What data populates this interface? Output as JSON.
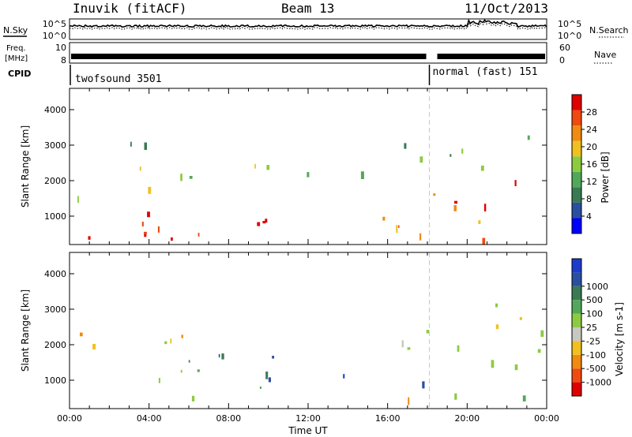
{
  "header": {
    "station": "Inuvik (fitACF)",
    "beam": "Beam 13",
    "date": "11/Oct/2013"
  },
  "colors": {
    "power_scale": [
      "#0000ff",
      "#2a4fa0",
      "#3a7a52",
      "#52a85a",
      "#8ccb3f",
      "#f0c020",
      "#f08a10",
      "#f04a10",
      "#e00000"
    ],
    "velocity_scale": [
      "#e00000",
      "#f04a10",
      "#f08a10",
      "#f0c020",
      "#c8c8c0",
      "#8ccb3f",
      "#52a85a",
      "#3a7a52",
      "#2a4fa0",
      "#1e3ccc"
    ],
    "axis": "#000000"
  },
  "side_labels": {
    "nsky": "N.Sky",
    "nsearch": "N.Search",
    "freq_line1": "Freq.",
    "freq_line2": "[MHz]",
    "nave": "Nave",
    "cpid": "CPID"
  },
  "cpid_segments": [
    {
      "label": "twofsound 3501",
      "start_hour": 0,
      "end_hour": 18.1
    },
    {
      "label": "normal (fast) 151",
      "start_hour": 18.1,
      "end_hour": 24
    }
  ],
  "chart_data": [
    {
      "type": "line",
      "panel": "noise",
      "left_axis": {
        "label": "N.Sky",
        "ticks": [
          "10^5",
          "10^0"
        ]
      },
      "right_axis": {
        "label": "N.Search",
        "ticks": [
          "10^5",
          "10^0"
        ]
      }
    },
    {
      "type": "line",
      "panel": "frequency",
      "left_axis": {
        "label": "Freq. [MHz]",
        "ticks": [
          "10",
          "8"
        ]
      },
      "right_axis": {
        "label": "Nave",
        "ticks": [
          "60",
          "0"
        ]
      }
    },
    {
      "type": "heatmap",
      "panel": "power",
      "xlabel": "",
      "ylabel": "Slant Range [km]",
      "xlim": [
        0,
        24
      ],
      "ylim": [
        200,
        4600
      ],
      "y_ticks": [
        "1000",
        "2000",
        "3000",
        "4000"
      ],
      "colorbar": {
        "label": "Power [dB]",
        "ticks": [
          "4",
          "8",
          "12",
          "16",
          "20",
          "24",
          "28"
        ],
        "range": [
          0,
          32
        ]
      },
      "regions": [
        {
          "x0": 0,
          "x1": 12,
          "y0": 400,
          "y1": 1400,
          "level": 8
        },
        {
          "x0": 3,
          "x1": 8.5,
          "y0": 300,
          "y1": 1000,
          "level": 8
        },
        {
          "x0": 0,
          "x1": 12,
          "y0": 1500,
          "y1": 2500,
          "level": 4
        },
        {
          "x0": 2,
          "x1": 6.5,
          "y0": 2600,
          "y1": 3100,
          "level": 3
        },
        {
          "x0": 13.5,
          "x1": 18,
          "y0": 700,
          "y1": 1700,
          "level": 6
        },
        {
          "x0": 14.5,
          "x1": 18,
          "y0": 1900,
          "y1": 3100,
          "level": 3
        },
        {
          "x0": 16,
          "x1": 18,
          "y0": 250,
          "y1": 700,
          "level": 6
        },
        {
          "x0": 18.2,
          "x1": 24,
          "y0": 1000,
          "y1": 2200,
          "level": 7
        },
        {
          "x0": 18.2,
          "x1": 24,
          "y0": 2300,
          "y1": 3400,
          "level": 3
        },
        {
          "x0": 18.2,
          "x1": 24,
          "y0": 300,
          "y1": 900,
          "level": 6
        }
      ]
    },
    {
      "type": "heatmap",
      "panel": "velocity",
      "xlabel": "Time UT",
      "ylabel": "Slant Range [km]",
      "xlim": [
        0,
        24
      ],
      "ylim": [
        200,
        4600
      ],
      "x_ticks": [
        "00:00",
        "04:00",
        "08:00",
        "12:00",
        "16:00",
        "20:00",
        "00:00"
      ],
      "y_ticks": [
        "1000",
        "2000",
        "3000",
        "4000"
      ],
      "colorbar": {
        "label": "Velocity [m s-1]",
        "ticks": [
          "-1000",
          "-500",
          "-100",
          "-25",
          "25",
          "100",
          "500",
          "1000"
        ]
      },
      "regions": [
        {
          "x0": 0,
          "x1": 8,
          "y0": 900,
          "y1": 1800,
          "level": 6
        },
        {
          "x0": 4.5,
          "x1": 8.5,
          "y0": 400,
          "y1": 900,
          "level": 4
        },
        {
          "x0": 7,
          "x1": 11,
          "y0": 700,
          "y1": 1800,
          "level": 7
        },
        {
          "x0": 9,
          "x1": 11.5,
          "y0": 800,
          "y1": 1700,
          "level": 8
        },
        {
          "x0": 0,
          "x1": 6,
          "y0": 2000,
          "y1": 2800,
          "level": 2
        },
        {
          "x0": 2.5,
          "x1": 8,
          "y0": 2000,
          "y1": 2600,
          "level": 4
        },
        {
          "x0": 13.5,
          "x1": 15.5,
          "y0": 900,
          "y1": 1700,
          "level": 9
        },
        {
          "x0": 15,
          "x1": 18,
          "y0": 700,
          "y1": 1400,
          "level": 8
        },
        {
          "x0": 16,
          "x1": 18,
          "y0": 400,
          "y1": 800,
          "level": 2
        },
        {
          "x0": 14.5,
          "x1": 18,
          "y0": 1900,
          "y1": 3000,
          "level": 5
        },
        {
          "x0": 18.2,
          "x1": 24,
          "y0": 1100,
          "y1": 2200,
          "level": 4
        },
        {
          "x0": 18.2,
          "x1": 24,
          "y0": 2400,
          "y1": 3400,
          "level": 4
        },
        {
          "x0": 18.2,
          "x1": 24,
          "y0": 500,
          "y1": 1000,
          "level": 6
        },
        {
          "x0": 18.5,
          "x1": 20,
          "y0": 700,
          "y1": 1000,
          "level": 1
        }
      ]
    }
  ]
}
